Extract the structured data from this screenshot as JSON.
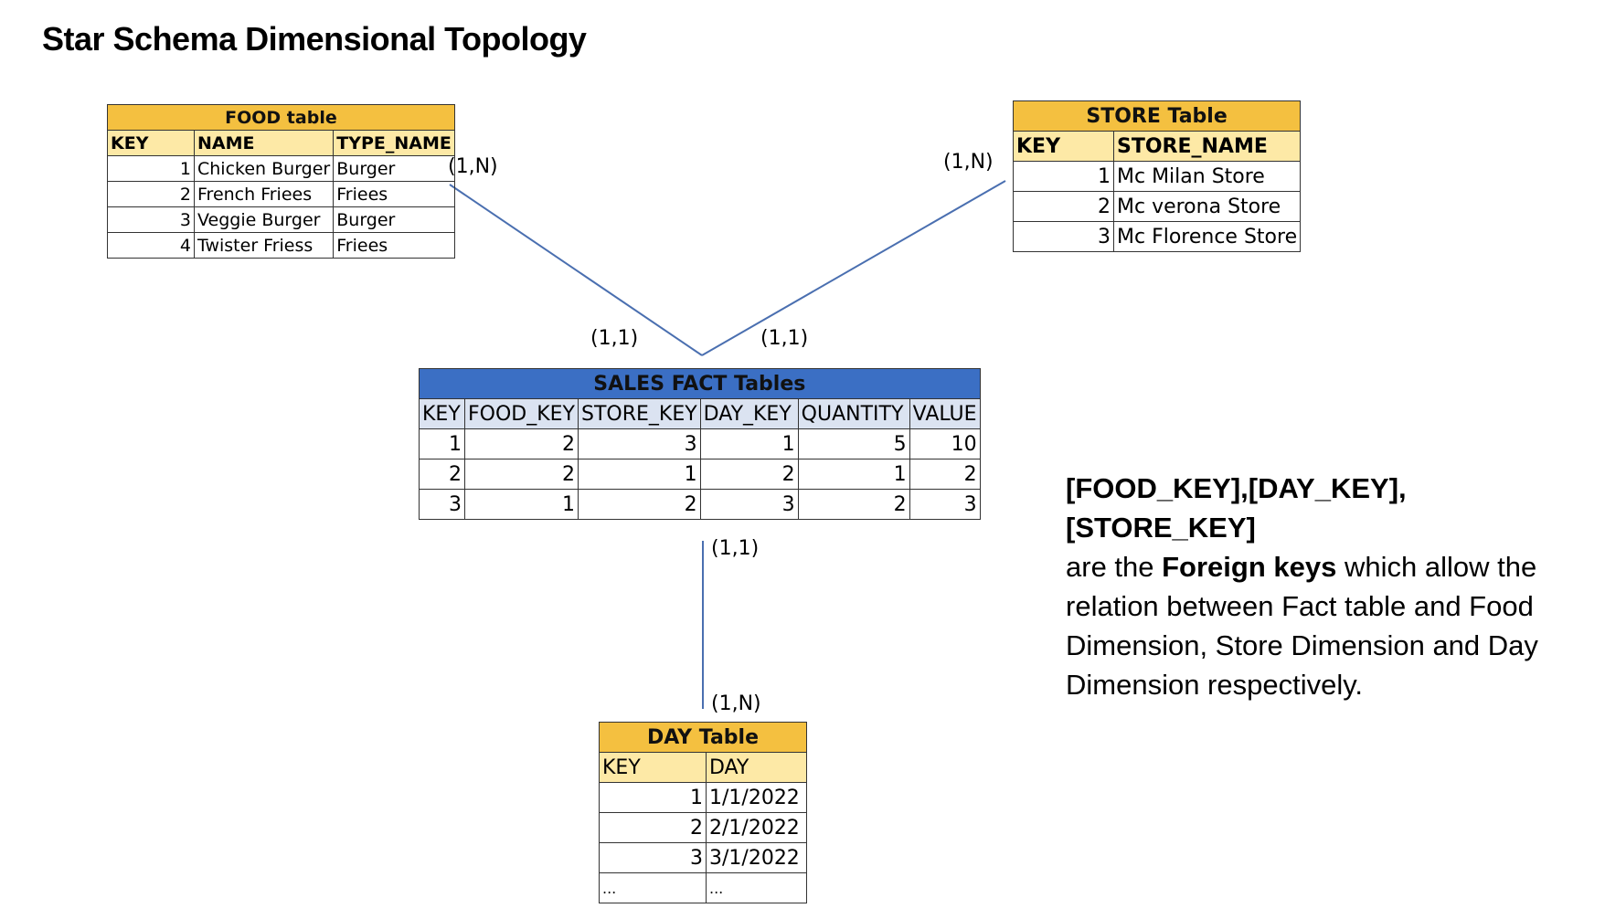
{
  "title": "Star Schema Dimensional Topology",
  "food_table": {
    "caption": "FOOD table",
    "columns": [
      "KEY",
      "NAME",
      "TYPE_NAME"
    ],
    "rows": [
      [
        "1",
        "Chicken Burger",
        "Burger"
      ],
      [
        "2",
        "French Friees",
        "Friees"
      ],
      [
        "3",
        "Veggie Burger",
        "Burger"
      ],
      [
        "4",
        "Twister Friess",
        "Friees"
      ]
    ]
  },
  "store_table": {
    "caption": "STORE Table",
    "columns": [
      "KEY",
      "STORE_NAME"
    ],
    "rows": [
      [
        "1",
        "Mc Milan Store"
      ],
      [
        "2",
        "Mc verona Store"
      ],
      [
        "3",
        "Mc Florence Store"
      ]
    ]
  },
  "sales_table": {
    "caption": "SALES FACT Tables",
    "columns": [
      "KEY",
      "FOOD_KEY",
      "STORE_KEY",
      "DAY_KEY",
      "QUANTITY",
      "VALUE"
    ],
    "rows": [
      [
        "1",
        "2",
        "3",
        "1",
        "5",
        "10"
      ],
      [
        "2",
        "2",
        "1",
        "2",
        "1",
        "2"
      ],
      [
        "3",
        "1",
        "2",
        "3",
        "2",
        "3"
      ]
    ]
  },
  "day_table": {
    "caption": "DAY Table",
    "columns": [
      "KEY",
      "DAY"
    ],
    "rows": [
      [
        "1",
        "1/1/2022"
      ],
      [
        "2",
        "2/1/2022"
      ],
      [
        "3",
        "3/1/2022"
      ],
      [
        "...",
        "..."
      ]
    ]
  },
  "cardinalities": {
    "food_side": "(1,N)",
    "store_side": "(1,N)",
    "fact_food_side": "(1,1)",
    "fact_store_side": "(1,1)",
    "fact_day_side": "(1,1)",
    "day_side": "(1,N)"
  },
  "note": {
    "keys": "[FOOD_KEY],[DAY_KEY],[STORE_KEY]",
    "text_before": "are the ",
    "bold_term": "Foreign keys",
    "text_after": " which allow the relation between Fact table and Food Dimension, Store Dimension and Day Dimension respectively."
  },
  "colors": {
    "dimension_caption": "#f4c040",
    "dimension_header": "#fde9a6",
    "fact_caption": "#3b6fc4",
    "fact_header": "#dbe3f1",
    "connector": "#4a6fb0"
  }
}
